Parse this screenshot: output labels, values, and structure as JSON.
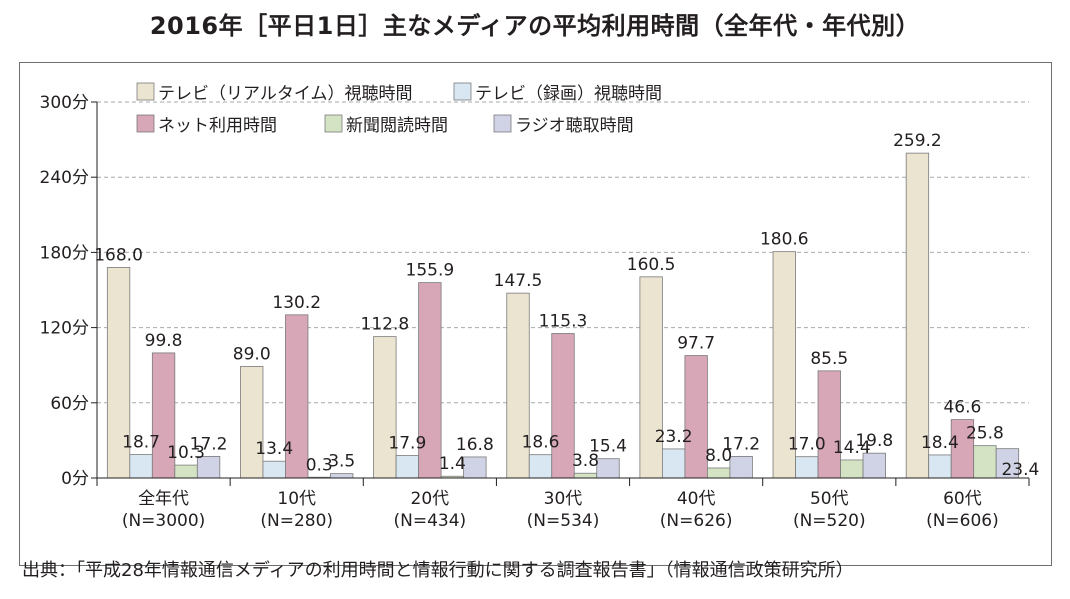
{
  "title": "2016年［平日1日］主なメディアの平均利用時間（全年代・年代別）",
  "source": "出典：「平成28年情報通信メディアの利用時間と情報行動に関する調査報告書」（情報通信政策研究所）",
  "colors": {
    "tv_real": "#ebe4d0",
    "tv_rec": "#d8e7f1",
    "net": "#d7a7b7",
    "newspaper": "#d3e3c4",
    "radio": "#d0d3e6",
    "grid": "#a7a9ac",
    "bar_stroke": "#7a7a7a"
  },
  "chart_data": {
    "type": "bar",
    "title": "2016年［平日1日］主なメディアの平均利用時間（全年代・年代別）",
    "xlabel": "",
    "ylabel": "",
    "ylim": [
      0,
      300
    ],
    "yticks": [
      0,
      60,
      120,
      180,
      240,
      300
    ],
    "ytick_labels": [
      "0分",
      "60分",
      "120分",
      "180分",
      "240分",
      "300分"
    ],
    "grid": true,
    "legend_position": "top",
    "categories": [
      "全年代",
      "10代",
      "20代",
      "30代",
      "40代",
      "50代",
      "60代"
    ],
    "category_sublabels": [
      "(N=3000)",
      "(N=280)",
      "(N=434)",
      "(N=534)",
      "(N=626)",
      "(N=520)",
      "(N=606)"
    ],
    "series": [
      {
        "name": "テレビ（リアルタイム）視聴時間",
        "color_key": "tv_real",
        "values": [
          168.0,
          89.0,
          112.8,
          147.5,
          160.5,
          180.6,
          259.2
        ]
      },
      {
        "name": "テレビ（録画）視聴時間",
        "color_key": "tv_rec",
        "values": [
          18.7,
          13.4,
          17.9,
          18.6,
          23.2,
          17.0,
          18.4
        ]
      },
      {
        "name": "ネット利用時間",
        "color_key": "net",
        "values": [
          99.8,
          130.2,
          155.9,
          115.3,
          97.7,
          85.5,
          46.6
        ]
      },
      {
        "name": "新聞閲読時間",
        "color_key": "newspaper",
        "values": [
          10.3,
          0.3,
          1.4,
          3.8,
          8.0,
          14.4,
          25.8
        ]
      },
      {
        "name": "ラジオ聴取時間",
        "color_key": "radio",
        "values": [
          17.2,
          3.5,
          16.8,
          15.4,
          17.2,
          19.8,
          23.4
        ]
      }
    ]
  }
}
